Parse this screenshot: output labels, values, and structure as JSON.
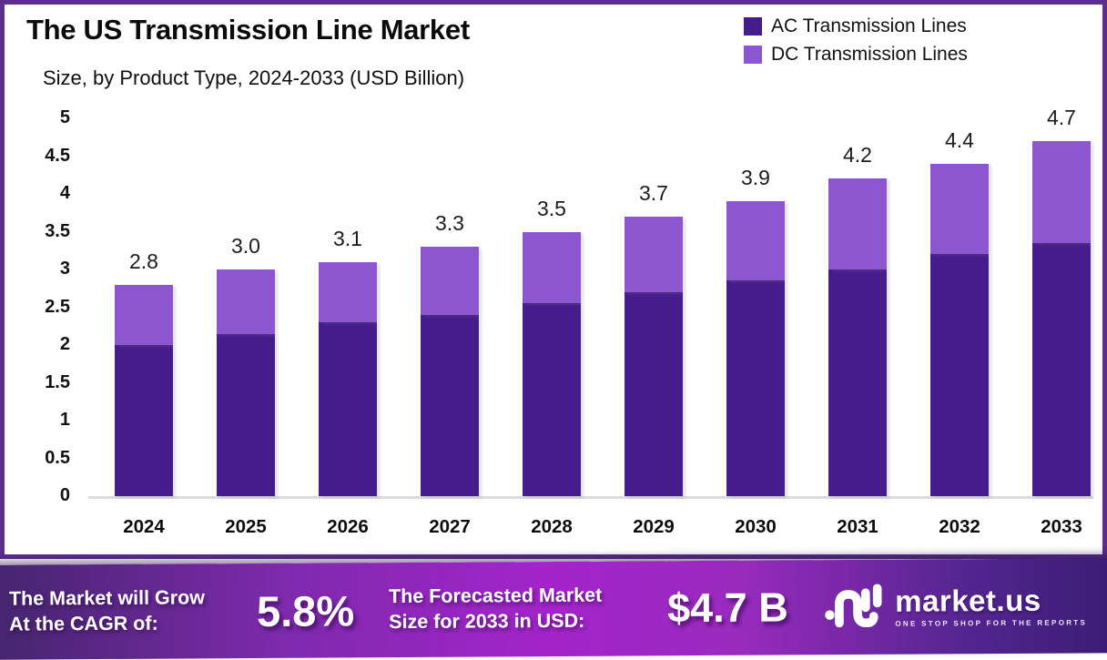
{
  "header": {
    "title": "The US Transmission Line Market",
    "subtitle": "Size, by Product Type, 2024-2033 (USD Billion)"
  },
  "chart_data": {
    "type": "bar",
    "stacked": true,
    "title": "The US Transmission Line Market",
    "subtitle": "Size, by Product Type, 2024-2033 (USD Billion)",
    "categories": [
      "2024",
      "2025",
      "2026",
      "2027",
      "2028",
      "2029",
      "2030",
      "2031",
      "2032",
      "2033"
    ],
    "series": [
      {
        "name": "AC Transmission Lines",
        "color": "#461B8C",
        "values": [
          2.0,
          2.15,
          2.3,
          2.4,
          2.55,
          2.7,
          2.85,
          3.0,
          3.2,
          3.35
        ]
      },
      {
        "name": "DC Transmission Lines",
        "color": "#8C57CE",
        "values": [
          0.8,
          0.85,
          0.8,
          0.9,
          0.95,
          1.0,
          1.05,
          1.2,
          1.2,
          1.35
        ]
      }
    ],
    "totals": [
      "2.8",
      "3.0",
      "3.1",
      "3.3",
      "3.5",
      "3.7",
      "3.9",
      "4.2",
      "4.4",
      "4.7"
    ],
    "ylim": [
      0,
      5
    ],
    "ytick_step": 0.5,
    "grid": false,
    "legend_position": "top-right",
    "value_unit": "USD Billion"
  },
  "banner": {
    "cagr_label_line1": "The Market will Grow",
    "cagr_label_line2": "At the CAGR of:",
    "cagr_value": "5.8%",
    "forecast_label_line1": "The Forecasted Market",
    "forecast_label_line2": "Size for 2033 in USD:",
    "forecast_value": "$4.7 B",
    "brand": {
      "name": "market.us",
      "tagline": "ONE STOP SHOP FOR THE REPORTS"
    }
  },
  "colors": {
    "ac_series": "#461B8C",
    "dc_series": "#8C57CE",
    "card_border": "#5B2D8E",
    "axis_line": "#dcdcdc",
    "banner_gradient_left": "#45256E",
    "banner_gradient_mid": "#A424CB",
    "banner_gradient_right": "#3A1D75"
  }
}
